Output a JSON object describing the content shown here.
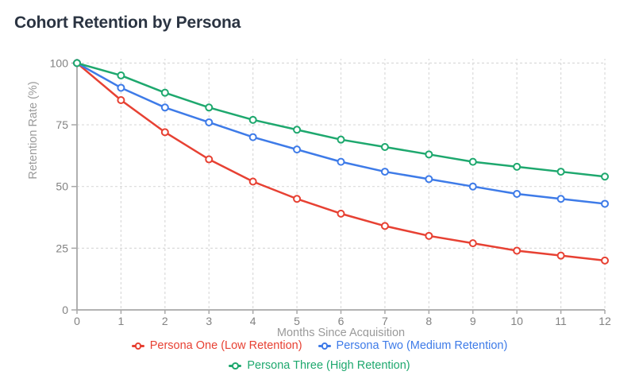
{
  "chart_data": {
    "type": "line",
    "title": "Cohort Retention by Persona",
    "xlabel": "Months Since Acquisition",
    "ylabel": "Retention Rate (%)",
    "x": [
      0,
      1,
      2,
      3,
      4,
      5,
      6,
      7,
      8,
      9,
      10,
      11,
      12
    ],
    "xlim": [
      0,
      12
    ],
    "ylim": [
      0,
      100
    ],
    "xticks": [
      0,
      1,
      2,
      3,
      4,
      5,
      6,
      7,
      8,
      9,
      10,
      11,
      12
    ],
    "yticks": [
      0,
      25,
      50,
      75,
      100
    ],
    "grid": "dashed",
    "legend_position": "bottom",
    "marker": "open-circle",
    "series": [
      {
        "name": "Persona One (Low Retention)",
        "color": "#e74133",
        "values": [
          100,
          85,
          72,
          61,
          52,
          45,
          39,
          34,
          30,
          27,
          24,
          22,
          20
        ]
      },
      {
        "name": "Persona Two (Medium Retention)",
        "color": "#3e7be8",
        "values": [
          100,
          90,
          82,
          76,
          70,
          65,
          60,
          56,
          53,
          50,
          47,
          45,
          43
        ]
      },
      {
        "name": "Persona Three (High Retention)",
        "color": "#1ea86e",
        "values": [
          100,
          95,
          88,
          82,
          77,
          73,
          69,
          66,
          63,
          60,
          58,
          56,
          54
        ]
      }
    ],
    "colors": {
      "title": "#2b3442",
      "axis": "#a8a8a8",
      "grid": "#dadada",
      "tick_label": "#828282",
      "axis_title": "#9a9a9a",
      "background": "#ffffff"
    }
  }
}
